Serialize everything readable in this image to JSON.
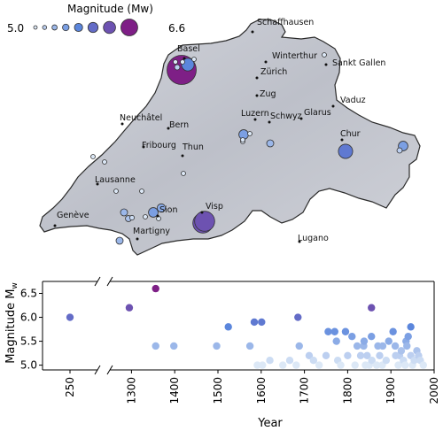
{
  "legend": {
    "title": "Magnitude (Mw)",
    "min_label": "5.0",
    "max_label": "6.6",
    "sizes": [
      5.0,
      5.2,
      5.4,
      5.6,
      5.8,
      6.0,
      6.2,
      6.6
    ]
  },
  "colors": {
    "map_fill": "#c4c7cf",
    "map_stroke": "#2a2a2a",
    "low_mag": "#dce8f6",
    "mid_mag": "#5b86dc",
    "high_mag": "#7e1f86"
  },
  "cities": [
    {
      "name": "Basel"
    },
    {
      "name": "Schaffhausen"
    },
    {
      "name": "Winterthur"
    },
    {
      "name": "Sankt Gallen"
    },
    {
      "name": "Zürich"
    },
    {
      "name": "Vaduz"
    },
    {
      "name": "Zug"
    },
    {
      "name": "Neuchâtel"
    },
    {
      "name": "Bern"
    },
    {
      "name": "Luzern"
    },
    {
      "name": "Schwyz"
    },
    {
      "name": "Glarus"
    },
    {
      "name": "Chur"
    },
    {
      "name": "Fribourg"
    },
    {
      "name": "Thun"
    },
    {
      "name": "Lausanne"
    },
    {
      "name": "Genève"
    },
    {
      "name": "Sion"
    },
    {
      "name": "Visp"
    },
    {
      "name": "Martigny"
    },
    {
      "name": "Lugano"
    }
  ],
  "chart_data": [
    {
      "type": "scatter",
      "title": "",
      "note": "Map of Switzerland with earthquake epicentres; circle size and colour encode magnitude",
      "size_legend": "Magnitude (Mw)",
      "size_range": [
        5.0,
        6.6
      ],
      "points": [
        {
          "mag": 6.6
        },
        {
          "mag": 5.8
        },
        {
          "mag": 5.0
        },
        {
          "mag": 5.2
        },
        {
          "mag": 5.0
        },
        {
          "mag": 5.0
        },
        {
          "mag": 5.0
        },
        {
          "mag": 5.6
        },
        {
          "mag": 5.4
        },
        {
          "mag": 5.0
        },
        {
          "mag": 6.2
        },
        {
          "mag": 5.0
        },
        {
          "mag": 5.0
        },
        {
          "mag": 5.0
        },
        {
          "mag": 5.0
        },
        {
          "mag": 5.0
        },
        {
          "mag": 5.0
        },
        {
          "mag": 5.9
        },
        {
          "mag": 5.6
        },
        {
          "mag": 5.4
        },
        {
          "mag": 5.3
        },
        {
          "mag": 5.1
        },
        {
          "mag": 5.5
        },
        {
          "mag": 5.0
        },
        {
          "mag": 6.2
        },
        {
          "mag": 5.6
        },
        {
          "mag": 5.4
        },
        {
          "mag": 5.0
        },
        {
          "mag": 5.0
        },
        {
          "mag": 5.2
        }
      ]
    },
    {
      "type": "scatter",
      "xlabel": "Year",
      "ylabel": "Magnitude M",
      "ylabel_sub": "w",
      "xlim_break_left": [
        230,
        270
      ],
      "xlim": [
        1250,
        2000
      ],
      "ylim": [
        4.9,
        6.75
      ],
      "x_ticks": [
        250,
        1300,
        1400,
        1500,
        1600,
        1700,
        1800,
        1900,
        2000
      ],
      "y_ticks": [
        5.0,
        5.5,
        6.0,
        6.5
      ],
      "x_tick_labels": [
        "250",
        "1300",
        "1400",
        "1500",
        "1600",
        "1700",
        "1800",
        "1900",
        "2000"
      ],
      "y_tick_labels": [
        "5.0",
        "5.5",
        "6.0",
        "6.5"
      ],
      "points": [
        {
          "x": 250,
          "y": 6.0
        },
        {
          "x": 1295,
          "y": 6.2
        },
        {
          "x": 1356,
          "y": 6.6
        },
        {
          "x": 1356,
          "y": 5.4
        },
        {
          "x": 1398,
          "y": 5.4
        },
        {
          "x": 1497,
          "y": 5.4
        },
        {
          "x": 1524,
          "y": 5.8
        },
        {
          "x": 1574,
          "y": 5.4
        },
        {
          "x": 1584,
          "y": 5.9
        },
        {
          "x": 1601,
          "y": 5.9
        },
        {
          "x": 1591,
          "y": 5.0
        },
        {
          "x": 1603,
          "y": 5.0
        },
        {
          "x": 1620,
          "y": 5.1
        },
        {
          "x": 1650,
          "y": 5.0
        },
        {
          "x": 1666,
          "y": 5.1
        },
        {
          "x": 1681,
          "y": 5.0
        },
        {
          "x": 1685,
          "y": 6.0
        },
        {
          "x": 1688,
          "y": 5.4
        },
        {
          "x": 1711,
          "y": 5.2
        },
        {
          "x": 1721,
          "y": 5.1
        },
        {
          "x": 1734,
          "y": 5.0
        },
        {
          "x": 1750,
          "y": 5.2
        },
        {
          "x": 1755,
          "y": 5.7
        },
        {
          "x": 1770,
          "y": 5.7
        },
        {
          "x": 1774,
          "y": 5.5
        },
        {
          "x": 1777,
          "y": 5.1
        },
        {
          "x": 1784,
          "y": 5.0
        },
        {
          "x": 1795,
          "y": 5.7
        },
        {
          "x": 1800,
          "y": 5.2
        },
        {
          "x": 1810,
          "y": 5.6
        },
        {
          "x": 1817,
          "y": 5.0
        },
        {
          "x": 1822,
          "y": 5.4
        },
        {
          "x": 1830,
          "y": 5.2
        },
        {
          "x": 1837,
          "y": 5.4
        },
        {
          "x": 1838,
          "y": 5.5
        },
        {
          "x": 1841,
          "y": 5.0
        },
        {
          "x": 1845,
          "y": 5.2
        },
        {
          "x": 1850,
          "y": 5.0
        },
        {
          "x": 1855,
          "y": 6.2
        },
        {
          "x": 1855,
          "y": 5.6
        },
        {
          "x": 1856,
          "y": 5.1
        },
        {
          "x": 1867,
          "y": 5.0
        },
        {
          "x": 1870,
          "y": 5.4
        },
        {
          "x": 1874,
          "y": 5.2
        },
        {
          "x": 1880,
          "y": 5.0
        },
        {
          "x": 1881,
          "y": 5.4
        },
        {
          "x": 1889,
          "y": 5.1
        },
        {
          "x": 1895,
          "y": 5.5
        },
        {
          "x": 1905,
          "y": 5.7
        },
        {
          "x": 1910,
          "y": 5.4
        },
        {
          "x": 1911,
          "y": 5.2
        },
        {
          "x": 1917,
          "y": 5.0
        },
        {
          "x": 1920,
          "y": 5.2
        },
        {
          "x": 1924,
          "y": 5.3
        },
        {
          "x": 1929,
          "y": 5.1
        },
        {
          "x": 1933,
          "y": 5.0
        },
        {
          "x": 1935,
          "y": 5.5
        },
        {
          "x": 1937,
          "y": 5.4
        },
        {
          "x": 1940,
          "y": 5.6
        },
        {
          "x": 1946,
          "y": 5.8
        },
        {
          "x": 1946,
          "y": 5.2
        },
        {
          "x": 1950,
          "y": 5.0
        },
        {
          "x": 1954,
          "y": 5.1
        },
        {
          "x": 1960,
          "y": 5.3
        },
        {
          "x": 1964,
          "y": 5.2
        },
        {
          "x": 1968,
          "y": 5.1
        },
        {
          "x": 1975,
          "y": 5.0
        }
      ]
    }
  ]
}
